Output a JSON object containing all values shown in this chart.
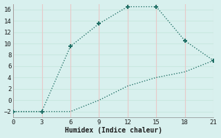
{
  "xlabel": "Humidex (Indice chaleur)",
  "line1_x": [
    0,
    3,
    6,
    9,
    12,
    15,
    18,
    21
  ],
  "line1_y": [
    -2,
    -2,
    9.5,
    13.5,
    16.5,
    16.5,
    10.5,
    7
  ],
  "line2_x": [
    0,
    3,
    6,
    9,
    12,
    15,
    18,
    21
  ],
  "line2_y": [
    -2,
    -2,
    -2,
    0,
    2.5,
    4,
    5,
    7
  ],
  "line_color": "#1e6e64",
  "bg_color": "#d8f0ee",
  "grid_color_h": "#c8e8e0",
  "grid_color_v": "#e8c8c8",
  "xlim": [
    0,
    21
  ],
  "ylim": [
    -3,
    17
  ],
  "xticks": [
    0,
    3,
    6,
    9,
    12,
    15,
    18,
    21
  ],
  "yticks": [
    -2,
    0,
    2,
    4,
    6,
    8,
    10,
    12,
    14,
    16
  ]
}
